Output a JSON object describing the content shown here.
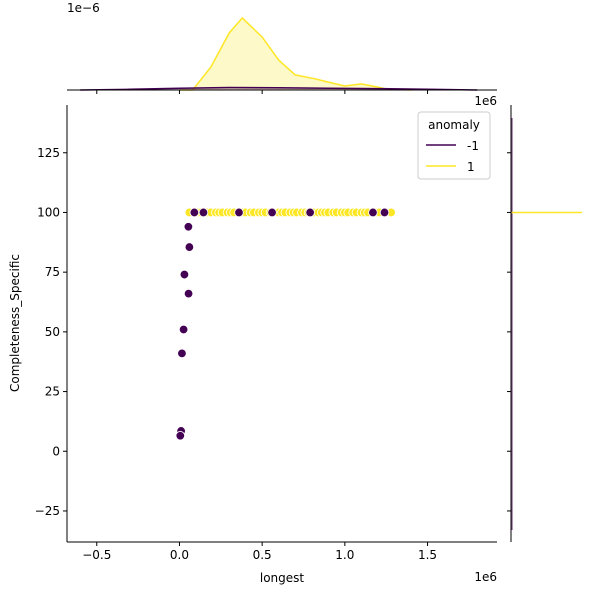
{
  "chart_data": {
    "type": "scatter",
    "subtype": "jointplot",
    "xlabel": "longest",
    "ylabel": "Completeness_Specific",
    "x_offset_label": "1e6",
    "top_marginal_offset_label": "1e6",
    "top_marginal_y_offset_label": "1e−6",
    "xlim": [
      -0.68,
      1.92
    ],
    "ylim": [
      -38,
      145
    ],
    "x_ticks": [
      -0.5,
      0.0,
      0.5,
      1.0,
      1.5
    ],
    "x_tick_labels": [
      "−0.5",
      "0.0",
      "0.5",
      "1.0",
      "1.5"
    ],
    "y_ticks": [
      -25,
      0,
      25,
      50,
      75,
      100,
      125
    ],
    "y_tick_labels": [
      "−25",
      "0",
      "25",
      "50",
      "75",
      "100",
      "125"
    ],
    "grid": false,
    "legend": {
      "title": "anomaly",
      "placement": "top-right",
      "entries": [
        "-1",
        "1"
      ]
    },
    "colors": {
      "-1": "#440154",
      "1": "#fde725"
    },
    "series": [
      {
        "name": "1",
        "points": [
          [
            0.06,
            100
          ],
          [
            0.09,
            100
          ],
          [
            0.11,
            100
          ],
          [
            0.13,
            100
          ],
          [
            0.15,
            100
          ],
          [
            0.17,
            100
          ],
          [
            0.19,
            100
          ],
          [
            0.22,
            100
          ],
          [
            0.24,
            100
          ],
          [
            0.26,
            100
          ],
          [
            0.29,
            100
          ],
          [
            0.31,
            100
          ],
          [
            0.33,
            100
          ],
          [
            0.36,
            100
          ],
          [
            0.38,
            100
          ],
          [
            0.4,
            100
          ],
          [
            0.43,
            100
          ],
          [
            0.45,
            100
          ],
          [
            0.48,
            100
          ],
          [
            0.5,
            100
          ],
          [
            0.52,
            100
          ],
          [
            0.55,
            100
          ],
          [
            0.57,
            100
          ],
          [
            0.6,
            100
          ],
          [
            0.62,
            100
          ],
          [
            0.64,
            100
          ],
          [
            0.67,
            100
          ],
          [
            0.69,
            100
          ],
          [
            0.71,
            100
          ],
          [
            0.74,
            100
          ],
          [
            0.76,
            100
          ],
          [
            0.78,
            100
          ],
          [
            0.81,
            100
          ],
          [
            0.84,
            100
          ],
          [
            0.86,
            100
          ],
          [
            0.88,
            100
          ],
          [
            0.9,
            100
          ],
          [
            0.93,
            100
          ],
          [
            0.95,
            100
          ],
          [
            0.98,
            100
          ],
          [
            1.0,
            100
          ],
          [
            1.02,
            100
          ],
          [
            1.05,
            100
          ],
          [
            1.07,
            100
          ],
          [
            1.1,
            100
          ],
          [
            1.12,
            100
          ],
          [
            1.14,
            100
          ],
          [
            1.17,
            100
          ],
          [
            1.19,
            100
          ],
          [
            1.21,
            100
          ],
          [
            1.28,
            100
          ]
        ],
        "kde_x": [
          [
            0.0,
            0
          ],
          [
            0.08,
            0.0
          ],
          [
            0.19,
            0.64
          ],
          [
            0.3,
            1.58
          ],
          [
            0.38,
            2.0
          ],
          [
            0.5,
            1.47
          ],
          [
            0.6,
            0.83
          ],
          [
            0.7,
            0.42
          ],
          [
            0.82,
            0.31
          ],
          [
            0.9,
            0.22
          ],
          [
            1.0,
            0.11
          ],
          [
            1.1,
            0.17
          ],
          [
            1.2,
            0.08
          ],
          [
            1.26,
            0.02
          ],
          [
            1.4,
            0
          ]
        ],
        "kde_y_peak": 100
      },
      {
        "name": "-1",
        "points": [
          [
            0.09,
            100
          ],
          [
            0.145,
            100
          ],
          [
            0.36,
            100
          ],
          [
            0.56,
            100
          ],
          [
            0.79,
            100
          ],
          [
            1.17,
            100
          ],
          [
            1.24,
            100
          ],
          [
            0.054,
            94
          ],
          [
            0.06,
            85.5
          ],
          [
            0.03,
            74
          ],
          [
            0.055,
            66
          ],
          [
            0.025,
            51
          ],
          [
            0.015,
            41
          ],
          [
            0.01,
            8.5
          ],
          [
            0.005,
            6.5
          ]
        ],
        "kde_x": [
          [
            -0.6,
            0
          ],
          [
            -0.3,
            0.02
          ],
          [
            0.0,
            0.05
          ],
          [
            0.3,
            0.07
          ],
          [
            0.6,
            0.06
          ],
          [
            0.9,
            0.05
          ],
          [
            1.2,
            0.04
          ],
          [
            1.5,
            0.02
          ],
          [
            1.8,
            0
          ]
        ]
      }
    ]
  }
}
